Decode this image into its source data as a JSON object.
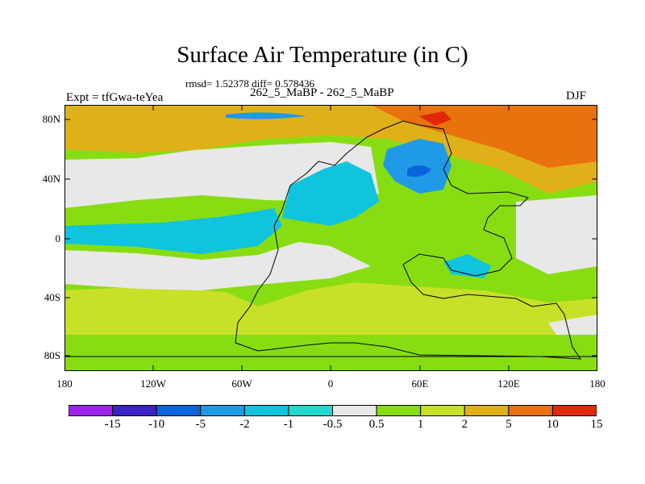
{
  "title": "Surface Air Temperature (in C)",
  "stats": "rmsd= 1.52378 diff= 0.578436",
  "left_label": "Expt = tfGwa-teYea",
  "center_label": "262_5_MaBP - 262_5_MaBP",
  "right_label": "DJF",
  "lat_labels": [
    "80N",
    "40N",
    "0",
    "40S",
    "80S"
  ],
  "lon_labels": [
    "180",
    "120W",
    "60W",
    "0",
    "60E",
    "120E",
    "180"
  ],
  "colorbar": {
    "labels": [
      "-15",
      "-10",
      "-5",
      "-2",
      "-1",
      "-0.5",
      "0.5",
      "1",
      "2",
      "5",
      "10",
      "15"
    ],
    "colors": [
      "#9f22ec",
      "#3c23c8",
      "#0a64dc",
      "#1e9ae6",
      "#10c4de",
      "#20d8cc",
      "#e8e8e8",
      "#88dd12",
      "#c8e028",
      "#e0b018",
      "#e8720e",
      "#e0280a"
    ]
  },
  "map_colors": {
    "ocean_background": "#88dd12",
    "land_background": "#c8e028",
    "near_zero": "#e8e8e8",
    "slightly_cold": "#20d8cc",
    "cold": "#10c4de",
    "colder": "#1e9ae6",
    "coldest": "#0a64dc",
    "warm": "#e0b018",
    "warmer": "#e8720e",
    "hot": "#e0280a"
  }
}
